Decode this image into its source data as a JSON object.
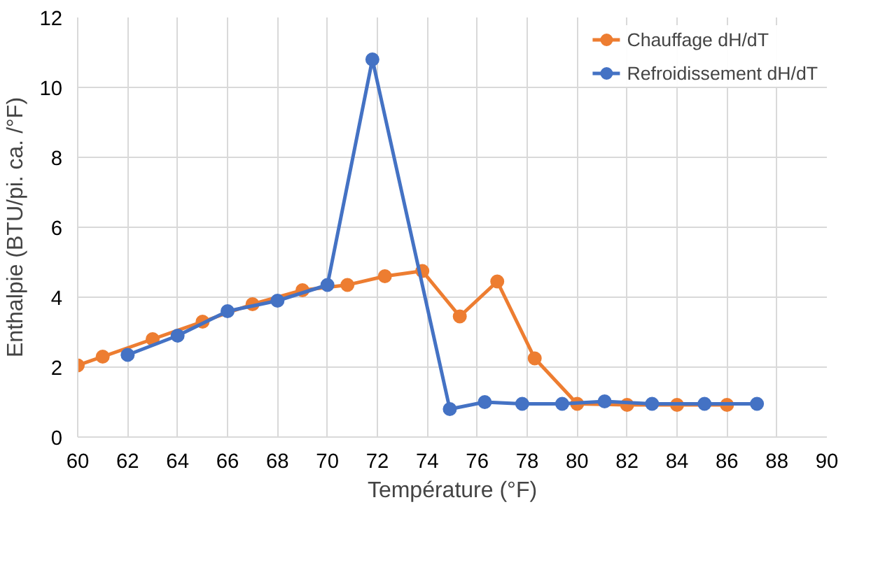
{
  "chart_data": {
    "type": "line",
    "xlabel": "Température (°F)",
    "ylabel": "Enthalpie (BTU/pi. ca. /°F)",
    "xlim": [
      60,
      90
    ],
    "xticks": [
      60,
      62,
      64,
      66,
      68,
      70,
      72,
      74,
      76,
      78,
      80,
      82,
      84,
      86,
      88,
      90
    ],
    "ylim": [
      0,
      12
    ],
    "yticks": [
      0,
      2,
      4,
      6,
      8,
      10,
      12
    ],
    "grid": true,
    "legend": "top right",
    "marker": "circle",
    "line_style": "solid",
    "series": [
      {
        "name": "Chauffage dH/dT",
        "color": "#ed7d31",
        "x": [
          60,
          61,
          63,
          65,
          67,
          69,
          70.8,
          72.3,
          73.8,
          75.3,
          76.8,
          78.3,
          80,
          82,
          84,
          86
        ],
        "values": [
          2.05,
          2.3,
          2.8,
          3.3,
          3.8,
          4.2,
          4.35,
          4.6,
          4.75,
          3.45,
          4.45,
          2.25,
          0.95,
          0.92,
          0.92,
          0.92
        ]
      },
      {
        "name": "Refroidissement dH/dT",
        "color": "#4472c4",
        "x": [
          62,
          64,
          66,
          68,
          70,
          71.8,
          74.9,
          76.3,
          77.8,
          79.4,
          81.1,
          83,
          85.1,
          87.2
        ],
        "values": [
          2.35,
          2.9,
          3.6,
          3.9,
          4.35,
          10.8,
          0.8,
          1.0,
          0.95,
          0.95,
          1.02,
          0.95,
          0.95,
          0.95
        ]
      }
    ]
  }
}
